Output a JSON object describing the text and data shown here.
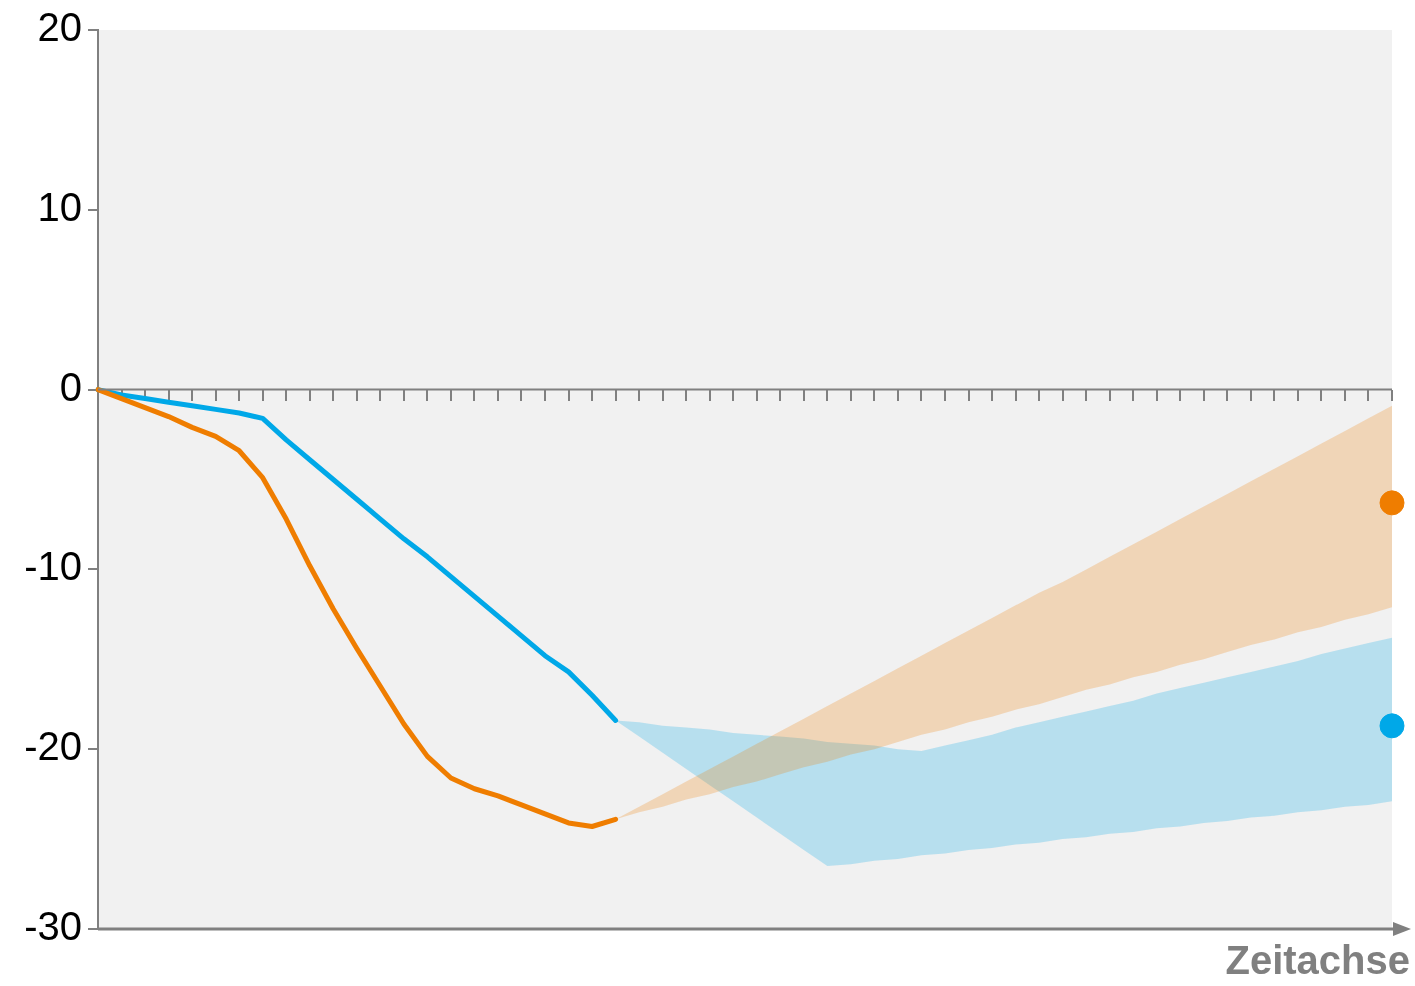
{
  "chart_data": {
    "type": "line",
    "xlabel": "Zeitachse",
    "categories": [
      null,
      null,
      null,
      null,
      null,
      null,
      null,
      null,
      null,
      null,
      null,
      null,
      null,
      null,
      null,
      null,
      null,
      null,
      null,
      null,
      null,
      null,
      null,
      null,
      null,
      null,
      null,
      null,
      null,
      null,
      null,
      null,
      null,
      null,
      null,
      null,
      null,
      null,
      null,
      null,
      null,
      null,
      null,
      null,
      null,
      null,
      null,
      null,
      null,
      null,
      null,
      null,
      null,
      null,
      null,
      null
    ],
    "ylim": [
      -30,
      20
    ],
    "yticks": [
      -30,
      -20,
      -10,
      0,
      10,
      20
    ],
    "tick_labels": "y",
    "grid": false,
    "ref_lines": [
      {
        "axis": "y",
        "value": 0,
        "color": "#808080"
      }
    ],
    "legend": false,
    "marker": "none",
    "line_style": "solid",
    "series": [
      {
        "color": "#ef7d00",
        "values": [
          0,
          -0.5,
          -1.0,
          -1.5,
          -2.1,
          -2.6,
          -3.4,
          -4.9,
          -7.2,
          -9.8,
          -12.2,
          -14.4,
          -16.5,
          -18.6,
          -20.4,
          -21.6,
          -22.2,
          -22.6,
          -23.1,
          -23.6,
          -24.1,
          -24.3,
          -23.9,
          null,
          null,
          null,
          null,
          null,
          null,
          null,
          null,
          null,
          null,
          null,
          null,
          null,
          null,
          null,
          null,
          null,
          null,
          null,
          null,
          null,
          null,
          null,
          null,
          null,
          null,
          null,
          null,
          null,
          null,
          null,
          null,
          null
        ],
        "lower": [
          0,
          -0.5,
          -1.0,
          -1.5,
          -2.1,
          -2.6,
          -3.4,
          -4.9,
          -7.2,
          -9.8,
          -12.2,
          -14.4,
          -16.5,
          -18.6,
          -20.4,
          -21.6,
          -22.2,
          -22.6,
          -23.1,
          -23.6,
          -24.1,
          -24.3,
          -23.9,
          -23.5,
          -23.2,
          -22.8,
          -22.5,
          -22.1,
          -21.8,
          -21.4,
          -21.0,
          -20.7,
          -20.3,
          -20.0,
          -19.6,
          -19.2,
          -18.9,
          -18.5,
          -18.2,
          -17.8,
          -17.5,
          -17.1,
          -16.7,
          -16.4,
          -16.0,
          -15.7,
          -15.3,
          -15.0,
          -14.6,
          -14.2,
          -13.9,
          -13.5,
          -13.2,
          -12.8,
          -12.5,
          -12.1
        ],
        "upper": [
          0,
          -0.5,
          -1.0,
          -1.5,
          -2.1,
          -2.6,
          -3.4,
          -4.9,
          -7.2,
          -9.8,
          -12.2,
          -14.4,
          -16.5,
          -18.6,
          -20.4,
          -21.6,
          -22.2,
          -22.6,
          -23.1,
          -23.6,
          -24.1,
          -24.3,
          -23.9,
          -23.2,
          -22.5,
          -21.8,
          -21.1,
          -20.4,
          -19.7,
          -19.0,
          -18.3,
          -17.6,
          -16.9,
          -16.2,
          -15.5,
          -14.8,
          -14.1,
          -13.4,
          -12.7,
          -12.0,
          -11.3,
          -10.7,
          -10.0,
          -9.3,
          -8.6,
          -7.9,
          -7.2,
          -6.5,
          -5.8,
          -5.1,
          -4.4,
          -3.7,
          -3.0,
          -2.3,
          -1.6,
          -0.9
        ]
      },
      {
        "color": "#00a8e8",
        "values": [
          0,
          -0.3,
          -0.5,
          -0.7,
          -0.9,
          -1.1,
          -1.3,
          -1.6,
          -2.8,
          -3.9,
          -5.0,
          -6.1,
          -7.2,
          -8.3,
          -9.3,
          -10.4,
          -11.5,
          -12.6,
          -13.7,
          -14.8,
          -15.7,
          -17.0,
          -18.4,
          null,
          null,
          null,
          null,
          null,
          null,
          null,
          null,
          null,
          null,
          null,
          null,
          null,
          null,
          null,
          null,
          null,
          null,
          null,
          null,
          null,
          null,
          null,
          null,
          null,
          null,
          null,
          null,
          null,
          null,
          null,
          null,
          null
        ],
        "lower": [
          0,
          -0.3,
          -0.5,
          -0.7,
          -0.9,
          -1.1,
          -1.3,
          -1.6,
          -2.8,
          -3.9,
          -5.0,
          -6.1,
          -7.2,
          -8.3,
          -9.3,
          -10.4,
          -11.5,
          -12.6,
          -13.7,
          -14.8,
          -15.7,
          -17.0,
          -18.4,
          -19.3,
          -20.2,
          -21.1,
          -22.0,
          -22.9,
          -23.8,
          -24.7,
          -25.6,
          -26.5,
          -26.4,
          -26.2,
          -26.1,
          -25.9,
          -25.8,
          -25.6,
          -25.5,
          -25.3,
          -25.2,
          -25.0,
          -24.9,
          -24.7,
          -24.6,
          -24.4,
          -24.3,
          -24.1,
          -24.0,
          -23.8,
          -23.7,
          -23.5,
          -23.4,
          -23.2,
          -23.1,
          -22.9
        ],
        "upper": [
          0,
          -0.3,
          -0.5,
          -0.7,
          -0.9,
          -1.1,
          -1.3,
          -1.6,
          -2.8,
          -3.9,
          -5.0,
          -6.1,
          -7.2,
          -8.3,
          -9.3,
          -10.4,
          -11.5,
          -12.6,
          -13.7,
          -14.8,
          -15.7,
          -17.0,
          -18.4,
          -18.5,
          -18.7,
          -18.8,
          -18.9,
          -19.1,
          -19.2,
          -19.3,
          -19.4,
          -19.6,
          -19.7,
          -19.8,
          -20.0,
          -20.1,
          -19.8,
          -19.5,
          -19.2,
          -18.8,
          -18.5,
          -18.2,
          -17.9,
          -17.6,
          -17.3,
          -16.9,
          -16.6,
          -16.3,
          -16.0,
          -15.7,
          -15.4,
          -15.1,
          -14.7,
          -14.4,
          -14.1,
          -13.8
        ]
      },
      {
        "type": "scatter",
        "marker": "circle",
        "color": "#ef7d00",
        "values": [
          null,
          null,
          null,
          null,
          null,
          null,
          null,
          null,
          null,
          null,
          null,
          null,
          null,
          null,
          null,
          null,
          null,
          null,
          null,
          null,
          null,
          null,
          null,
          null,
          null,
          null,
          null,
          null,
          null,
          null,
          null,
          null,
          null,
          null,
          null,
          null,
          null,
          null,
          null,
          null,
          null,
          null,
          null,
          null,
          null,
          null,
          null,
          null,
          null,
          null,
          null,
          null,
          null,
          null,
          null,
          -6.3
        ]
      },
      {
        "type": "scatter",
        "marker": "circle",
        "color": "#00a8e8",
        "values": [
          null,
          null,
          null,
          null,
          null,
          null,
          null,
          null,
          null,
          null,
          null,
          null,
          null,
          null,
          null,
          null,
          null,
          null,
          null,
          null,
          null,
          null,
          null,
          null,
          null,
          null,
          null,
          null,
          null,
          null,
          null,
          null,
          null,
          null,
          null,
          null,
          null,
          null,
          null,
          null,
          null,
          null,
          null,
          null,
          null,
          null,
          null,
          null,
          null,
          null,
          null,
          null,
          null,
          null,
          null,
          -18.7
        ]
      }
    ]
  }
}
